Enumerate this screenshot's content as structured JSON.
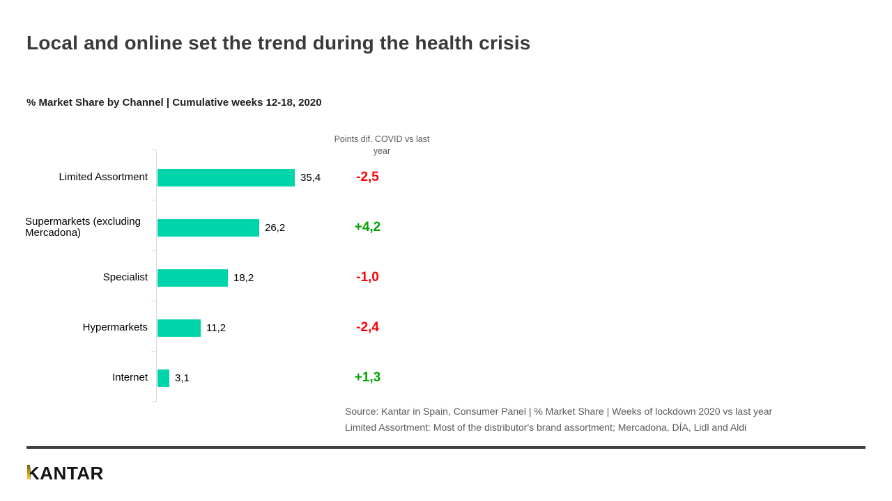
{
  "header": {
    "title": "Local and online set the trend during the health crisis",
    "subtitle": "% Market Share by Channel | Cumulative weeks 12-18, 2020"
  },
  "chart_data": {
    "type": "bar",
    "orientation": "horizontal",
    "title": "% Market Share by Channel | Cumulative weeks 12-18, 2020",
    "categories": [
      "Limited Assortment",
      "Supermarkets (excluding Mercadona)",
      "Specialist",
      "Hypermarkets",
      "Internet"
    ],
    "values": [
      35.4,
      26.2,
      18.2,
      11.2,
      3.1
    ],
    "value_labels": [
      "35,4",
      "26,2",
      "18,2",
      "11,2",
      "3,1"
    ],
    "diff_header": "Points dif. COVID vs last year",
    "diffs": [
      {
        "label": "-2,5",
        "sign": "negative"
      },
      {
        "label": "+4,2",
        "sign": "positive"
      },
      {
        "label": "-1,0",
        "sign": "negative"
      },
      {
        "label": "-2,4",
        "sign": "negative"
      },
      {
        "label": "+1,3",
        "sign": "positive"
      }
    ],
    "bar_color": "#00D4AA",
    "negative_color": "#FF0000",
    "positive_color": "#00A400",
    "axis_color": "#d9d9d9",
    "xlim": [
      0,
      38
    ],
    "grid": false,
    "legend": "none"
  },
  "footer": {
    "source_line1": "Source: Kantar in Spain, Consumer Panel | % Market Share | Weeks of lockdown 2020 vs last year",
    "source_line2": "Limited Assortment: Most of the distributor's brand assortment; Mercadona, DÍA, Lidl and Aldi",
    "logo_text": "KANTAR"
  }
}
